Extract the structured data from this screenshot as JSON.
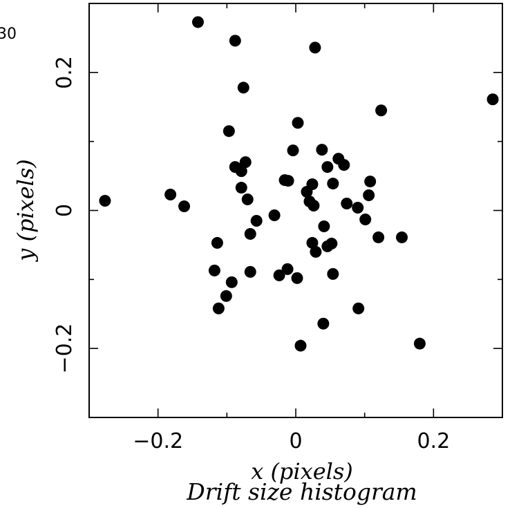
{
  "corner_text": "30",
  "chart_data": {
    "type": "scatter",
    "title": "",
    "caption": "Drift size histogram",
    "xlabel": "x (pixels)",
    "ylabel": "y (pixels)",
    "xlim": [
      -0.3,
      0.3
    ],
    "ylim": [
      -0.3,
      0.3
    ],
    "x_ticks": [
      -0.2,
      0,
      0.2
    ],
    "x_tick_labels": [
      "−0.2",
      "0",
      "0.2"
    ],
    "y_ticks": [
      -0.2,
      0,
      0.2
    ],
    "y_tick_labels": [
      "−0.2",
      "0",
      "0.2"
    ],
    "grid": false,
    "marker_color": "#000000",
    "points": [
      {
        "x": -0.142,
        "y": 0.273
      },
      {
        "x": -0.088,
        "y": 0.246
      },
      {
        "x": 0.028,
        "y": 0.236
      },
      {
        "x": -0.076,
        "y": 0.178
      },
      {
        "x": 0.124,
        "y": 0.145
      },
      {
        "x": 0.286,
        "y": 0.161
      },
      {
        "x": -0.097,
        "y": 0.115
      },
      {
        "x": 0.003,
        "y": 0.127
      },
      {
        "x": -0.004,
        "y": 0.087
      },
      {
        "x": 0.038,
        "y": 0.088
      },
      {
        "x": 0.062,
        "y": 0.075
      },
      {
        "x": 0.07,
        "y": 0.066
      },
      {
        "x": 0.046,
        "y": 0.063
      },
      {
        "x": -0.088,
        "y": 0.063
      },
      {
        "x": -0.073,
        "y": 0.07
      },
      {
        "x": -0.079,
        "y": 0.057
      },
      {
        "x": -0.016,
        "y": 0.044
      },
      {
        "x": -0.011,
        "y": 0.043
      },
      {
        "x": 0.024,
        "y": 0.038
      },
      {
        "x": 0.054,
        "y": 0.039
      },
      {
        "x": 0.108,
        "y": 0.042
      },
      {
        "x": -0.079,
        "y": 0.033
      },
      {
        "x": 0.016,
        "y": 0.027
      },
      {
        "x": 0.106,
        "y": 0.022
      },
      {
        "x": -0.182,
        "y": 0.023
      },
      {
        "x": -0.07,
        "y": 0.016
      },
      {
        "x": 0.02,
        "y": 0.013
      },
      {
        "x": -0.277,
        "y": 0.014
      },
      {
        "x": 0.074,
        "y": 0.01
      },
      {
        "x": 0.09,
        "y": 0.004
      },
      {
        "x": 0.026,
        "y": 0.007
      },
      {
        "x": -0.162,
        "y": 0.006
      },
      {
        "x": -0.031,
        "y": -0.007
      },
      {
        "x": 0.101,
        "y": -0.013
      },
      {
        "x": -0.057,
        "y": -0.015
      },
      {
        "x": 0.041,
        "y": -0.023
      },
      {
        "x": -0.066,
        "y": -0.034
      },
      {
        "x": 0.12,
        "y": -0.039
      },
      {
        "x": 0.154,
        "y": -0.039
      },
      {
        "x": -0.114,
        "y": -0.047
      },
      {
        "x": 0.024,
        "y": -0.047
      },
      {
        "x": 0.052,
        "y": -0.048
      },
      {
        "x": 0.046,
        "y": -0.052
      },
      {
        "x": 0.029,
        "y": -0.06
      },
      {
        "x": -0.118,
        "y": -0.087
      },
      {
        "x": -0.012,
        "y": -0.085
      },
      {
        "x": -0.066,
        "y": -0.089
      },
      {
        "x": -0.024,
        "y": -0.094
      },
      {
        "x": 0.054,
        "y": -0.092
      },
      {
        "x": 0.002,
        "y": -0.098
      },
      {
        "x": -0.093,
        "y": -0.104
      },
      {
        "x": -0.101,
        "y": -0.124
      },
      {
        "x": -0.112,
        "y": -0.142
      },
      {
        "x": 0.091,
        "y": -0.142
      },
      {
        "x": 0.04,
        "y": -0.164
      },
      {
        "x": 0.18,
        "y": -0.193
      },
      {
        "x": 0.007,
        "y": -0.196
      }
    ]
  }
}
